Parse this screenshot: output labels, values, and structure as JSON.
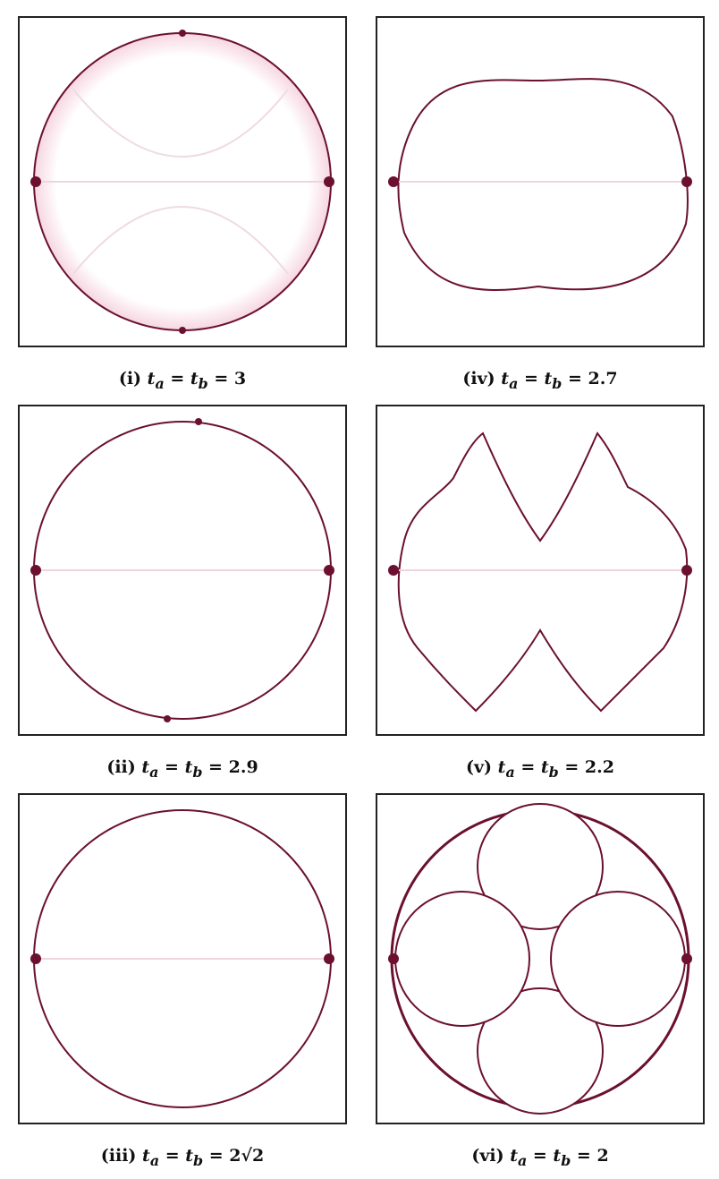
{
  "panels": [
    {
      "id": "i",
      "label": "(i)",
      "math": "t",
      "sa": "a",
      "sb": "b",
      "rhs": "3",
      "shape": "circle"
    },
    {
      "id": "iv",
      "label": "(iv)",
      "math": "t",
      "sa": "a",
      "sb": "b",
      "rhs": "2.7",
      "shape": "quasi-rect"
    },
    {
      "id": "ii",
      "label": "(ii)",
      "math": "t",
      "sa": "a",
      "sb": "b",
      "rhs": "2.9",
      "shape": "circle"
    },
    {
      "id": "v",
      "label": "(v)",
      "math": "t",
      "sa": "a",
      "sb": "b",
      "rhs": "2.2",
      "shape": "fractal"
    },
    {
      "id": "iii",
      "label": "(iii)",
      "math": "t",
      "sa": "a",
      "sb": "b",
      "rhs": "2√2",
      "shape": "circle"
    },
    {
      "id": "vi",
      "label": "(vi)",
      "math": "t",
      "sa": "a",
      "sb": "b",
      "rhs": "2",
      "shape": "apollonian"
    }
  ],
  "colors": {
    "boundary": "#6b1030",
    "glow": "#e6a3b6",
    "frame": "#222222"
  }
}
